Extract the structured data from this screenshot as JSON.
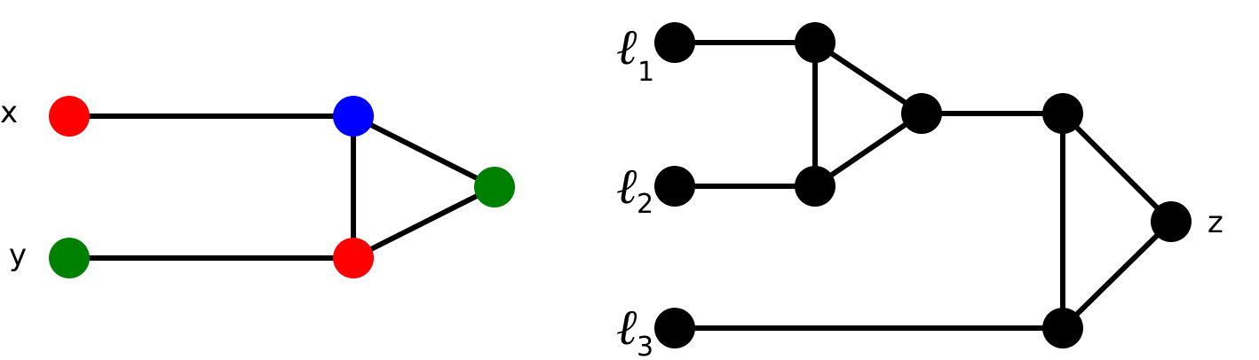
{
  "colors": {
    "red": "#ff0000",
    "blue": "#0000ff",
    "green": "#008000",
    "black": "#000000"
  },
  "left_graph": {
    "labels": {
      "x": "x",
      "y": "y"
    }
  },
  "right_graph": {
    "labels": {
      "ell_symbol": "ℓ",
      "l1_sub": "1",
      "l2_sub": "2",
      "l3_sub": "3",
      "z": "z"
    }
  }
}
